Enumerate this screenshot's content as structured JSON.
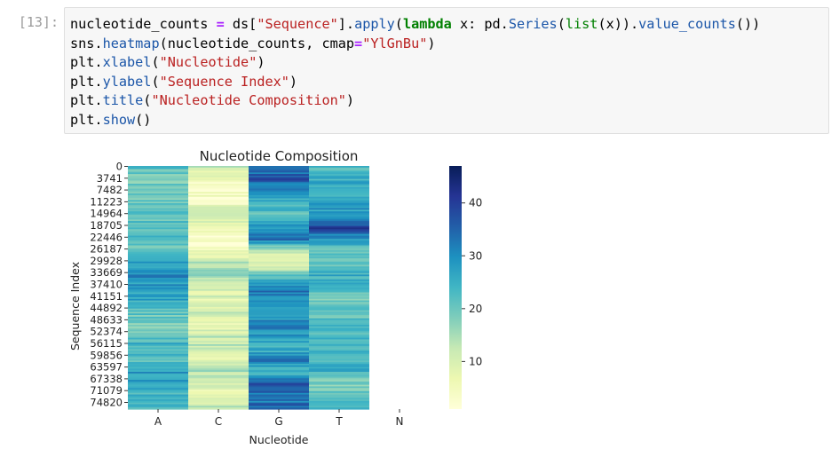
{
  "cell": {
    "prompt": "[13]:",
    "lines": [
      [
        [
          "t",
          "nucleotide_counts "
        ],
        [
          "op",
          "="
        ],
        [
          "t",
          " ds["
        ],
        [
          "str",
          "\"Sequence\""
        ],
        [
          "t",
          "]."
        ],
        [
          "fn",
          "apply"
        ],
        [
          "t",
          "("
        ],
        [
          "kw",
          "lambda"
        ],
        [
          "t",
          " x: pd."
        ],
        [
          "fn",
          "Series"
        ],
        [
          "t",
          "("
        ],
        [
          "bi",
          "list"
        ],
        [
          "t",
          "(x))."
        ],
        [
          "fn",
          "value_counts"
        ],
        [
          "t",
          "())"
        ]
      ],
      [
        [
          "t",
          "sns."
        ],
        [
          "fn",
          "heatmap"
        ],
        [
          "t",
          "(nucleotide_counts, cmap"
        ],
        [
          "op",
          "="
        ],
        [
          "str",
          "\"YlGnBu\""
        ],
        [
          "t",
          ")"
        ]
      ],
      [
        [
          "t",
          "plt."
        ],
        [
          "fn",
          "xlabel"
        ],
        [
          "t",
          "("
        ],
        [
          "str",
          "\"Nucleotide\""
        ],
        [
          "t",
          ")"
        ]
      ],
      [
        [
          "t",
          "plt."
        ],
        [
          "fn",
          "ylabel"
        ],
        [
          "t",
          "("
        ],
        [
          "str",
          "\"Sequence Index\""
        ],
        [
          "t",
          ")"
        ]
      ],
      [
        [
          "t",
          "plt."
        ],
        [
          "fn",
          "title"
        ],
        [
          "t",
          "("
        ],
        [
          "str",
          "\"Nucleotide Composition\""
        ],
        [
          "t",
          ")"
        ]
      ],
      [
        [
          "t",
          "plt."
        ],
        [
          "fn",
          "show"
        ],
        [
          "t",
          "()"
        ]
      ]
    ]
  },
  "chart_data": {
    "type": "heatmap",
    "title": "Nucleotide Composition",
    "xlabel": "Nucleotide",
    "ylabel": "Sequence Index",
    "x_categories": [
      "A",
      "C",
      "G",
      "T",
      "N"
    ],
    "y_tick_labels": [
      "0",
      "3741",
      "7482",
      "11223",
      "14964",
      "18705",
      "22446",
      "26187",
      "29928",
      "33669",
      "37410",
      "41151",
      "44892",
      "48633",
      "52374",
      "56115",
      "59856",
      "63597",
      "67338",
      "71079",
      "74820"
    ],
    "colormap": "YlGnBu",
    "colorbar_ticks": [
      10,
      20,
      30,
      40
    ],
    "value_range": [
      1,
      47
    ],
    "grid": false,
    "column_profiles": {
      "A": [
        22,
        18,
        21,
        20,
        23,
        20,
        24,
        19,
        27,
        30,
        28,
        26,
        21,
        19,
        22,
        25,
        20,
        29,
        26,
        24,
        22
      ],
      "C": [
        12,
        6,
        4,
        5,
        14,
        5,
        3,
        6,
        14,
        15,
        10,
        9,
        11,
        7,
        12,
        13,
        9,
        14,
        8,
        10,
        12
      ],
      "G": [
        30,
        38,
        29,
        25,
        22,
        28,
        33,
        10,
        9,
        20,
        33,
        31,
        25,
        31,
        28,
        24,
        32,
        22,
        38,
        31,
        35
      ],
      "T": [
        22,
        26,
        24,
        30,
        26,
        40,
        28,
        19,
        21,
        25,
        24,
        19,
        21,
        22,
        24,
        24,
        23,
        25,
        18,
        22,
        24
      ],
      "N": []
    }
  }
}
